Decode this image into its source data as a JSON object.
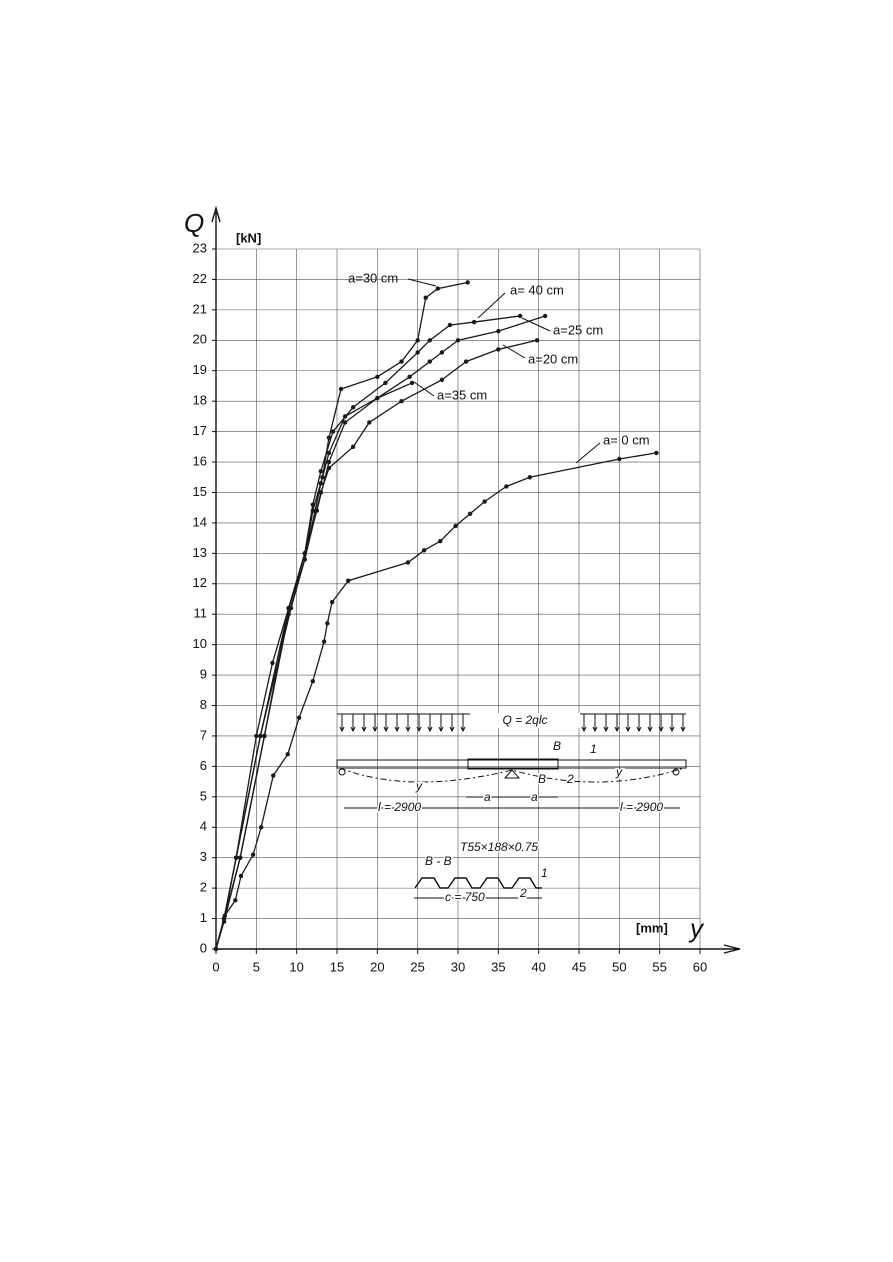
{
  "chart_data": {
    "type": "line",
    "y_label": "Q",
    "y_unit": "[kN]",
    "x_label": "y",
    "x_unit": "[mm]",
    "xlim": [
      0,
      60
    ],
    "ylim": [
      0,
      23
    ],
    "xticks": [
      0,
      5,
      10,
      15,
      20,
      25,
      30,
      35,
      40,
      45,
      50,
      55,
      60
    ],
    "yticks": [
      0,
      1,
      2,
      3,
      4,
      5,
      6,
      7,
      8,
      9,
      10,
      11,
      12,
      13,
      14,
      15,
      16,
      17,
      18,
      19,
      20,
      21,
      22,
      23
    ],
    "grid": true,
    "series": [
      {
        "name": "a=30 cm",
        "color": "#1a1a1a",
        "x": [
          0,
          1,
          2.5,
          5.5,
          9.3,
          11,
          12,
          13.2,
          14,
          15.5,
          20,
          23,
          25,
          26,
          27.5,
          31.2
        ],
        "values": [
          0,
          1,
          3,
          7,
          11.2,
          12.8,
          14.4,
          15.5,
          16.8,
          18.4,
          18.8,
          19.3,
          20,
          21.4,
          21.7,
          21.9
        ]
      },
      {
        "name": "a= 40 cm",
        "color": "#1a1a1a",
        "x": [
          0,
          1,
          2.5,
          5.5,
          9,
          11,
          12,
          13,
          14.5,
          17,
          21,
          25,
          26.5,
          29,
          32,
          37.7
        ],
        "values": [
          0,
          1,
          3,
          7,
          11.2,
          13,
          14.6,
          15.7,
          17,
          17.8,
          18.6,
          19.6,
          20,
          20.5,
          20.6,
          20.8
        ]
      },
      {
        "name": "a=25 cm",
        "color": "#1a1a1a",
        "x": [
          0,
          1,
          3,
          6,
          9,
          11,
          13,
          14,
          16,
          20,
          24,
          26.5,
          28,
          30,
          35,
          40.8
        ],
        "values": [
          0,
          1,
          3,
          7,
          11.2,
          12.8,
          15.3,
          16.3,
          17.5,
          18.1,
          18.8,
          19.3,
          19.6,
          20,
          20.3,
          20.8
        ]
      },
      {
        "name": "a=20 cm",
        "color": "#1a1a1a",
        "x": [
          0,
          1,
          3,
          6,
          9,
          11,
          13,
          14,
          17,
          19,
          23,
          28,
          31,
          35,
          39.8
        ],
        "values": [
          0,
          0.9,
          3,
          7,
          11,
          12.8,
          15,
          15.8,
          16.5,
          17.3,
          18,
          18.7,
          19.3,
          19.7,
          20
        ]
      },
      {
        "name": "a=35 cm",
        "color": "#1a1a1a",
        "x": [
          0,
          1,
          2.5,
          5,
          7,
          9,
          11,
          12.5,
          14,
          16,
          20,
          24.3
        ],
        "values": [
          0,
          1,
          3,
          7,
          9.4,
          11.2,
          13,
          14.4,
          16,
          17.3,
          18.1,
          18.6
        ]
      },
      {
        "name": "a= 0 cm",
        "color": "#1a1a1a",
        "x": [
          0,
          1.1,
          2.4,
          3.1,
          4.6,
          5.6,
          7.1,
          8.9,
          10.3,
          12,
          13.4,
          13.8,
          14.4,
          16.4,
          23.8,
          25.8,
          27.8,
          29.7,
          31.5,
          33.3,
          36,
          38.9,
          50,
          54.6
        ],
        "values": [
          0,
          1.1,
          1.6,
          2.4,
          3.1,
          4,
          5.7,
          6.4,
          7.6,
          8.8,
          10.1,
          10.7,
          11.4,
          12.1,
          12.7,
          13.1,
          13.4,
          13.9,
          14.3,
          14.7,
          15.2,
          15.5,
          16.1,
          16.3
        ]
      }
    ],
    "inset_labels": [
      "Q = 2qlc",
      "B",
      "1",
      "B",
      "2",
      "y",
      "y",
      "a",
      "a",
      "l = 2900",
      "l = 2900",
      "B - B",
      "T55×188×0.75",
      "1",
      "2",
      "c = 750"
    ]
  }
}
